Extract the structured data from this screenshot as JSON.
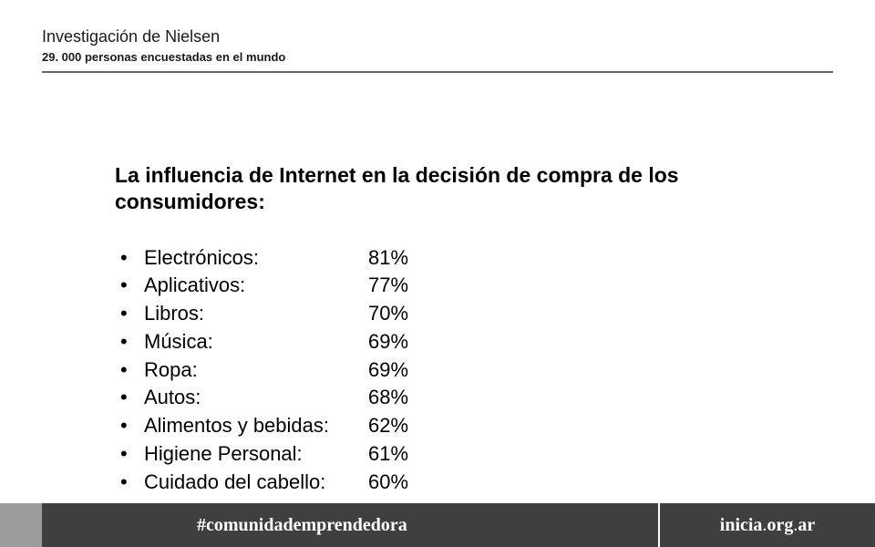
{
  "header": {
    "title": "Investigación de Nielsen",
    "subtitle": "29. 000 personas encuestadas en el mundo"
  },
  "content": {
    "heading": "La influencia de Internet en la decisión de compra de los consumidores:",
    "items": [
      {
        "label": "Electrónicos:",
        "value": "81%"
      },
      {
        "label": "Aplicativos:",
        "value": "77%"
      },
      {
        "label": "Libros:",
        "value": "70%"
      },
      {
        "label": "Música:",
        "value": "69%"
      },
      {
        "label": "Ropa:",
        "value": "69%"
      },
      {
        "label": "Autos:",
        "value": "68%"
      },
      {
        "label": "Alimentos y bebidas:",
        "value": "62%"
      },
      {
        "label": "Higiene Personal:",
        "value": "61%"
      },
      {
        "label": "Cuidado del cabello:",
        "value": "60%"
      }
    ]
  },
  "footer": {
    "hashtag": "#comunidademprendedora",
    "link": "inicia.org.ar"
  },
  "colors": {
    "background": "#ffffff",
    "text": "#000000",
    "header_text": "#1a1a1a",
    "footer_bg": "#3f3f3f",
    "footer_left_bg": "#9c9c9c",
    "footer_text": "#ffffff",
    "rule": "#666666"
  }
}
